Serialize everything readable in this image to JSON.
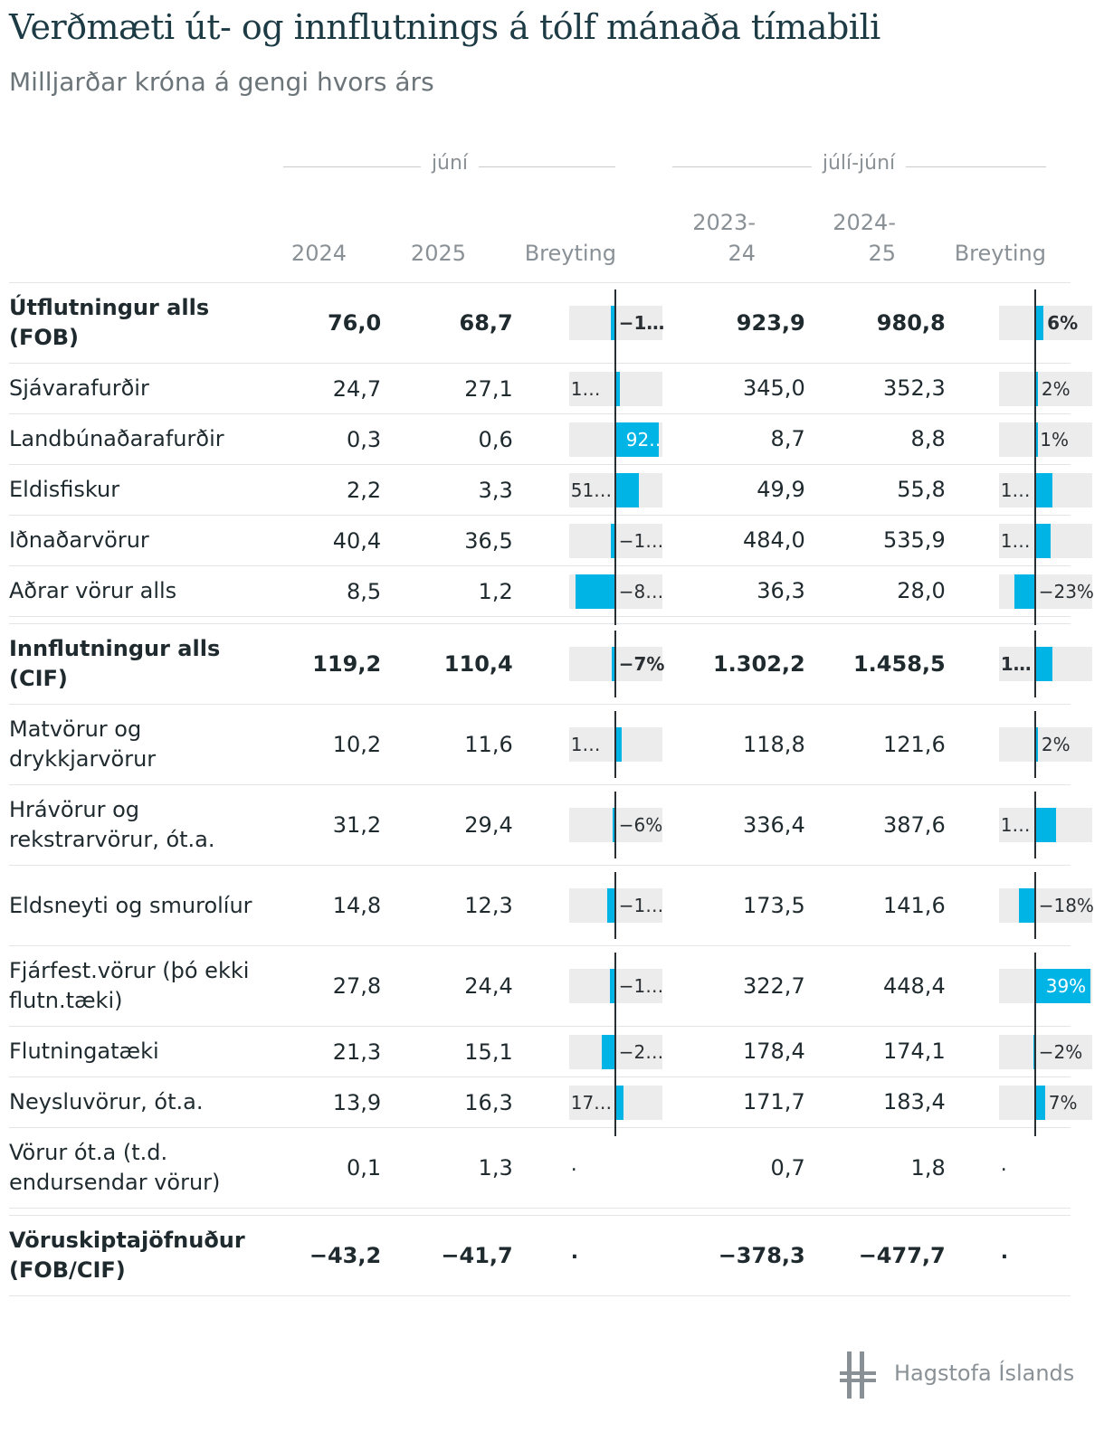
{
  "title": "Verðmæti út- og innflutnings á tólf mánaða tímabili",
  "subtitle": "Milljarðar króna á gengi hvors árs",
  "groups": {
    "month": "júní",
    "period": "júlí-júní"
  },
  "headers": {
    "m1": "2024",
    "m2": "2025",
    "m_change": "Breyting",
    "p1_line1": "2023-",
    "p1_line2": "24",
    "p2_line1": "2024-",
    "p2_line2": "25",
    "p_change": "Breyting"
  },
  "logo_text": "Hagstofa Íslands",
  "colors": {
    "bar": "#00b4e6",
    "bar_bg": "#ececec",
    "axis": "#2a2f33"
  },
  "chart_data": {
    "type": "table",
    "rows": [
      {
        "label": "Útflutningur alls (FOB)",
        "bold": true,
        "m2024": "76,0",
        "m2025": "68,7",
        "m_change_label": "−1…",
        "m_change_pct": -10,
        "p1": "923,9",
        "p2": "980,8",
        "p_change_label": "6%",
        "p_change_pct": 6
      },
      {
        "label": "Sjávarafurðir",
        "bold": false,
        "m2024": "24,7",
        "m2025": "27,1",
        "m_change_label": "1…",
        "m_change_pct": 10,
        "p1": "345,0",
        "p2": "352,3",
        "p_change_label": "2%",
        "p_change_pct": 2
      },
      {
        "label": "Landbúnaðarafurðir",
        "bold": false,
        "m2024": "0,3",
        "m2025": "0,6",
        "m_change_label": "92…",
        "m_change_pct": 92,
        "p1": "8,7",
        "p2": "8,8",
        "p_change_label": "1%",
        "p_change_pct": 1
      },
      {
        "label": "Eldisfiskur",
        "bold": false,
        "m2024": "2,2",
        "m2025": "3,3",
        "m_change_label": "51…",
        "m_change_pct": 51,
        "p1": "49,9",
        "p2": "55,8",
        "p_change_label": "1…",
        "p_change_pct": 12
      },
      {
        "label": "Iðnaðarvörur",
        "bold": false,
        "m2024": "40,4",
        "m2025": "36,5",
        "m_change_label": "−1…",
        "m_change_pct": -10,
        "p1": "484,0",
        "p2": "535,9",
        "p_change_label": "1…",
        "p_change_pct": 11
      },
      {
        "label": "Aðrar vörur alls",
        "bold": false,
        "m2024": "8,5",
        "m2025": "1,2",
        "m_change_label": "−8…",
        "m_change_pct": -86,
        "p1": "36,3",
        "p2": "28,0",
        "p_change_label": "−23%",
        "p_change_pct": -23,
        "gap_after": true
      },
      {
        "label": "Innflutningur alls (CIF)",
        "bold": true,
        "m2024": "119,2",
        "m2025": "110,4",
        "m_change_label": "−7%",
        "m_change_pct": -7,
        "p1": "1.302,2",
        "p2": "1.458,5",
        "p_change_label": "1…",
        "p_change_pct": 12
      },
      {
        "label": "Matvörur og drykkjarvörur",
        "bold": false,
        "m2024": "10,2",
        "m2025": "11,6",
        "m_change_label": "1…",
        "m_change_pct": 14,
        "p1": "118,8",
        "p2": "121,6",
        "p_change_label": "2%",
        "p_change_pct": 2
      },
      {
        "label": "Hrávörur og rekstrarvörur, ót.a.",
        "bold": false,
        "m2024": "31,2",
        "m2025": "29,4",
        "m_change_label": "−6%",
        "m_change_pct": -6,
        "p1": "336,4",
        "p2": "387,6",
        "p_change_label": "1…",
        "p_change_pct": 15
      },
      {
        "label": "Eldsneyti og smurolíur",
        "bold": false,
        "m2024": "14,8",
        "m2025": "12,3",
        "m_change_label": "−1…",
        "m_change_pct": -17,
        "p1": "173,5",
        "p2": "141,6",
        "p_change_label": "−18%",
        "p_change_pct": -18
      },
      {
        "label": "Fjárfest.vörur (þó ekki flutn.tæki)",
        "bold": false,
        "m2024": "27,8",
        "m2025": "24,4",
        "m_change_label": "−1…",
        "m_change_pct": -12,
        "p1": "322,7",
        "p2": "448,4",
        "p_change_label": "39%",
        "p_change_pct": 39
      },
      {
        "label": "Flutningatæki",
        "bold": false,
        "m2024": "21,3",
        "m2025": "15,1",
        "m_change_label": "−2…",
        "m_change_pct": -29,
        "p1": "178,4",
        "p2": "174,1",
        "p_change_label": "−2%",
        "p_change_pct": -2
      },
      {
        "label": "Neysluvörur, ót.a.",
        "bold": false,
        "m2024": "13,9",
        "m2025": "16,3",
        "m_change_label": "17…",
        "m_change_pct": 17,
        "p1": "171,7",
        "p2": "183,4",
        "p_change_label": "7%",
        "p_change_pct": 7
      },
      {
        "label": "Vörur ót.a (t.d. endursendar vörur)",
        "bold": false,
        "m2024": "0,1",
        "m2025": "1,3",
        "m_change_label": ".",
        "m_change_pct": null,
        "p1": "0,7",
        "p2": "1,8",
        "p_change_label": ".",
        "p_change_pct": null,
        "gap_after": true
      },
      {
        "label": "Vöruskiptajöfnuður (FOB/CIF)",
        "bold": true,
        "m2024": "−43,2",
        "m2025": "−41,7",
        "m_change_label": ".",
        "m_change_pct": null,
        "p1": "−378,3",
        "p2": "−477,7",
        "p_change_label": ".",
        "p_change_pct": null
      }
    ]
  }
}
